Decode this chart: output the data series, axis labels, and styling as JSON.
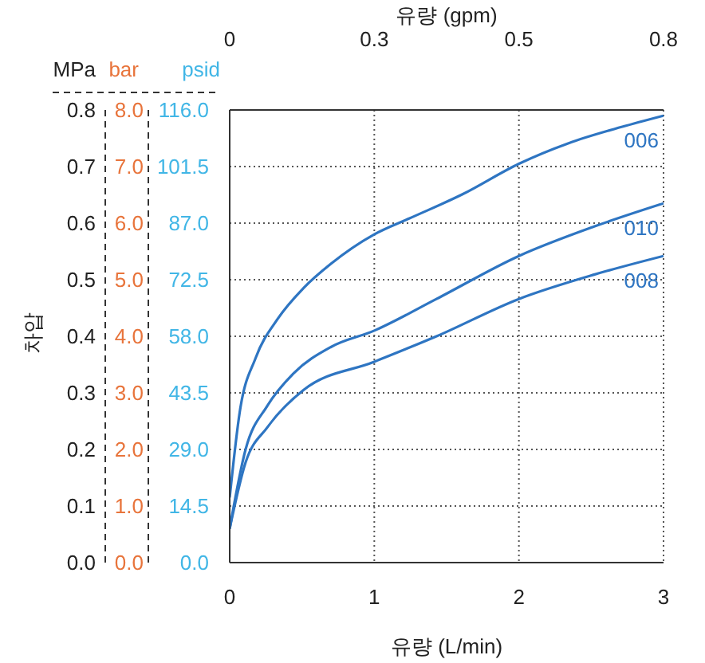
{
  "chart_data": {
    "type": "line",
    "xlabel": "유량 (L/min)",
    "x2label": "유량 (gpm)",
    "ylabel": "MPa",
    "y2label": "bar",
    "y3label": "psid",
    "annotations": [
      "차압"
    ],
    "xlim": [
      0,
      3
    ],
    "xticks": [
      0,
      1,
      2,
      3
    ],
    "x2lim": [
      0,
      0.8
    ],
    "x2ticks": [
      0,
      {
        "value": 0.2667,
        "label": "0.3"
      },
      {
        "value": 0.5333,
        "label": "0.5"
      },
      {
        "value": 0.8,
        "label": "0.8"
      }
    ],
    "ylim": [
      0,
      0.8
    ],
    "yticks": [
      {
        "value": 0,
        "label": "0.0"
      },
      0.1,
      0.2,
      0.3,
      0.4,
      0.5,
      0.6,
      0.7,
      0.8
    ],
    "y2lim": [
      0,
      8
    ],
    "y2ticks": [
      {
        "value": 0,
        "label": "0.0"
      },
      {
        "value": 1,
        "label": "1.0"
      },
      {
        "value": 2,
        "label": "2.0"
      },
      {
        "value": 3,
        "label": "3.0"
      },
      {
        "value": 4,
        "label": "4.0"
      },
      {
        "value": 5,
        "label": "5.0"
      },
      {
        "value": 6,
        "label": "6.0"
      },
      {
        "value": 7,
        "label": "7.0"
      },
      {
        "value": 8,
        "label": "8.0"
      }
    ],
    "y3lim": [
      0,
      116
    ],
    "y3ticks": [
      {
        "value": 0,
        "label": "0.0"
      },
      14.5,
      {
        "value": 29,
        "label": "29.0"
      },
      43.5,
      {
        "value": 58,
        "label": "58.0"
      },
      72.5,
      {
        "value": 87,
        "label": "87.0"
      },
      101.5,
      {
        "value": 116,
        "label": "116.0"
      }
    ],
    "grid": true,
    "marker": "none",
    "line_style": "solid",
    "legend": false,
    "series": [
      {
        "name": "006",
        "color": "#2e75c2",
        "x": [
          0,
          0.07,
          0.18,
          0.33,
          0.51,
          0.7,
          1.0,
          1.24,
          1.61,
          2.0,
          2.34,
          2.71,
          3.0
        ],
        "values": [
          0.115,
          0.267,
          0.362,
          0.43,
          0.485,
          0.528,
          0.58,
          0.608,
          0.651,
          0.705,
          0.741,
          0.77,
          0.79
        ]
      },
      {
        "name": "010",
        "color": "#2e75c2",
        "x": [
          0,
          0.11,
          0.26,
          0.44,
          0.7,
          1.0,
          1.43,
          2.0,
          2.52,
          3.0
        ],
        "values": [
          0.06,
          0.2,
          0.277,
          0.334,
          0.381,
          0.41,
          0.466,
          0.542,
          0.594,
          0.635
        ]
      },
      {
        "name": "008",
        "color": "#2e75c2",
        "x": [
          0,
          0.11,
          0.26,
          0.51,
          1.0,
          1.43,
          2.0,
          2.52,
          3.0
        ],
        "values": [
          0.06,
          0.177,
          0.239,
          0.305,
          0.355,
          0.4,
          0.466,
          0.509,
          0.542
        ]
      }
    ]
  }
}
